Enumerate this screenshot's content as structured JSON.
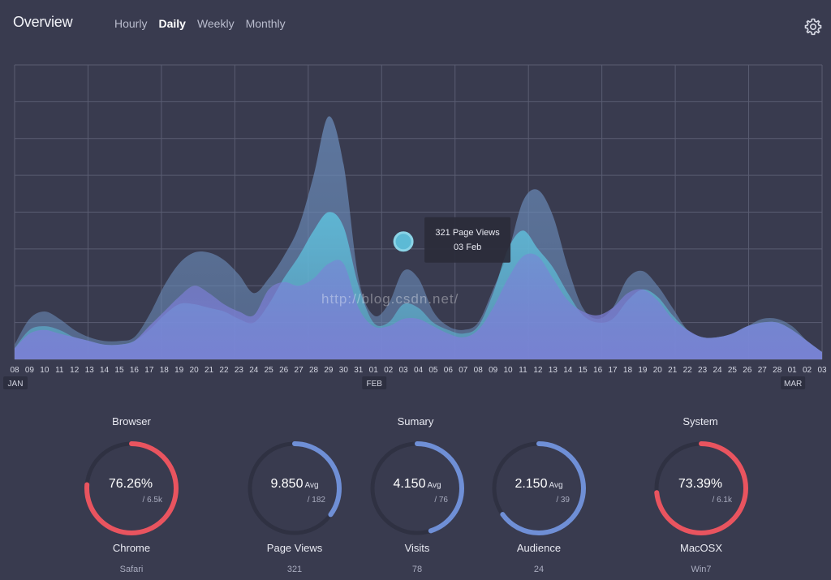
{
  "header": {
    "title": "Overview",
    "tabs": [
      {
        "label": "Hourly",
        "active": false
      },
      {
        "label": "Daily",
        "active": true
      },
      {
        "label": "Weekly",
        "active": false
      },
      {
        "label": "Monthly",
        "active": false
      }
    ],
    "settings_icon": "gear-icon"
  },
  "chart_data": {
    "type": "area",
    "x": [
      "08",
      "09",
      "10",
      "11",
      "12",
      "13",
      "14",
      "15",
      "16",
      "17",
      "18",
      "19",
      "20",
      "21",
      "22",
      "23",
      "24",
      "25",
      "26",
      "27",
      "28",
      "29",
      "30",
      "31",
      "01",
      "02",
      "03",
      "04",
      "05",
      "06",
      "07",
      "08",
      "09",
      "10",
      "11",
      "12",
      "13",
      "14",
      "15",
      "16",
      "17",
      "18",
      "19",
      "20",
      "21",
      "22",
      "23",
      "24",
      "25",
      "26",
      "27",
      "28",
      "01",
      "02",
      "03"
    ],
    "month_labels": [
      {
        "label": "JAN",
        "at_index": 0
      },
      {
        "label": "FEB",
        "at_index": 24
      },
      {
        "label": "MAR",
        "at_index": 52
      }
    ],
    "ylim": [
      0,
      8
    ],
    "series": [
      {
        "values": [
          0.4,
          1.1,
          1.3,
          1.1,
          0.8,
          0.6,
          0.5,
          0.5,
          0.6,
          1.2,
          2.0,
          2.6,
          2.9,
          2.9,
          2.7,
          2.3,
          1.8,
          2.2,
          2.8,
          3.6,
          5.0,
          6.6,
          5.3,
          2.2,
          1.2,
          1.5,
          2.4,
          2.2,
          1.3,
          0.9,
          0.8,
          1.0,
          1.9,
          2.9,
          4.3,
          4.6,
          3.9,
          2.5,
          1.4,
          1.1,
          1.4,
          2.2,
          2.4,
          2.0,
          1.4,
          0.8,
          0.6,
          0.6,
          0.7,
          0.9,
          1.1,
          1.1,
          0.9,
          0.5,
          0.2
        ]
      },
      {
        "values": [
          0.3,
          0.8,
          0.9,
          0.8,
          0.6,
          0.5,
          0.4,
          0.4,
          0.5,
          0.8,
          1.2,
          1.5,
          1.5,
          1.4,
          1.3,
          1.1,
          1.0,
          1.5,
          2.2,
          2.8,
          3.5,
          4.0,
          3.6,
          2.0,
          1.0,
          1.0,
          1.5,
          1.4,
          1.0,
          0.8,
          0.7,
          0.9,
          1.8,
          3.0,
          3.5,
          3.0,
          2.5,
          1.8,
          1.2,
          1.0,
          1.1,
          1.6,
          1.9,
          1.7,
          1.2,
          0.8,
          0.6,
          0.6,
          0.7,
          0.9,
          1.0,
          1.0,
          0.8,
          0.5,
          0.2
        ]
      },
      {
        "values": [
          0.3,
          0.7,
          0.8,
          0.7,
          0.6,
          0.5,
          0.4,
          0.4,
          0.5,
          0.9,
          1.3,
          1.7,
          2.0,
          1.8,
          1.5,
          1.3,
          1.2,
          1.9,
          2.1,
          2.0,
          2.2,
          2.6,
          2.6,
          1.4,
          0.9,
          0.9,
          1.1,
          1.1,
          0.9,
          0.7,
          0.6,
          0.8,
          1.4,
          2.2,
          2.8,
          2.8,
          2.2,
          1.6,
          1.3,
          1.2,
          1.4,
          1.8,
          1.9,
          1.6,
          1.1,
          0.8,
          0.6,
          0.6,
          0.7,
          0.9,
          1.0,
          1.0,
          0.8,
          0.5,
          0.2
        ]
      }
    ],
    "highlight": {
      "index": 26,
      "value": 3.2,
      "line1": "321 Page Views",
      "line2": "03 Feb"
    },
    "grid": true,
    "colors": {
      "back": "#6a8bb9",
      "mid": "#5fc1dd",
      "front": "#7d7fd8",
      "grid": "#5a5d72"
    }
  },
  "watermark": "http://blog.csdn.net/",
  "sections": [
    {
      "title": "Browser"
    },
    {
      "title": "Sumary"
    },
    {
      "title": "System"
    }
  ],
  "gauges": [
    {
      "value": "76.26%",
      "unit": "",
      "sub": "/ 6.5k",
      "label": "Chrome",
      "caption": "Safari",
      "fraction": 0.7626,
      "color": "#e9545f"
    },
    {
      "value": "9.850",
      "unit": "Avg",
      "sub": "/ 182",
      "label": "Page Views",
      "caption": "321",
      "fraction": 0.35,
      "color": "#6f8fd6"
    },
    {
      "value": "4.150",
      "unit": "Avg",
      "sub": "/ 76",
      "label": "Visits",
      "caption": "78",
      "fraction": 0.45,
      "color": "#6f8fd6"
    },
    {
      "value": "2.150",
      "unit": "Avg",
      "sub": "/ 39",
      "label": "Audience",
      "caption": "24",
      "fraction": 0.65,
      "color": "#6f8fd6"
    },
    {
      "value": "73.39%",
      "unit": "",
      "sub": "/ 6.1k",
      "label": "MacOSX",
      "caption": "Win7",
      "fraction": 0.7339,
      "color": "#e9545f"
    }
  ]
}
